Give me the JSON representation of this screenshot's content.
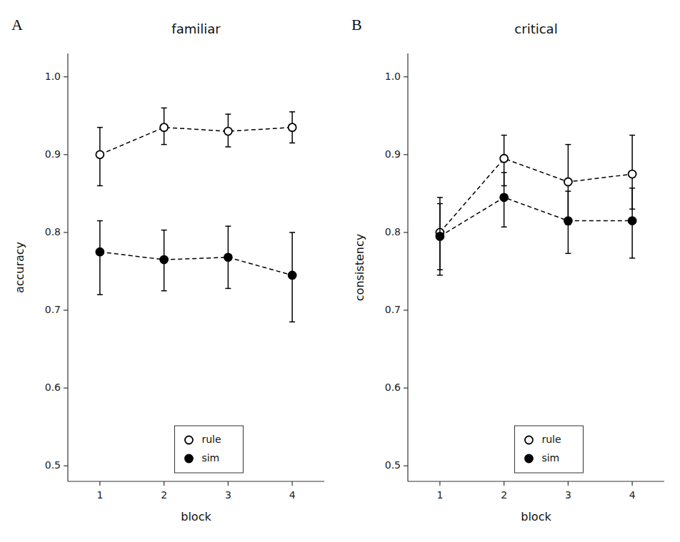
{
  "chart_data": [
    {
      "type": "line",
      "title": "familiar",
      "x_label": "block",
      "y_label": "accuracy",
      "annotations": [
        "A"
      ],
      "x": [
        1,
        2,
        3,
        4
      ],
      "xlim": [
        0.5,
        4.5
      ],
      "xticks": [
        1,
        2,
        3,
        4
      ],
      "ylim": [
        0.48,
        1.03
      ],
      "yticks": [
        0.5,
        0.6,
        0.7,
        0.8,
        0.9,
        {
          "value": 1.0,
          "label": "1.0"
        }
      ],
      "grid": false,
      "legend": "bottom",
      "series": [
        {
          "name": "rule",
          "color": "#000000",
          "marker": "open-circle",
          "line_style": "dashed",
          "values": [
            0.9,
            0.935,
            0.93,
            0.935
          ],
          "error_lo": [
            0.04,
            0.022,
            0.02,
            0.02
          ],
          "error_hi": [
            0.035,
            0.025,
            0.022,
            0.02
          ]
        },
        {
          "name": "sim",
          "color": "#000000",
          "marker": "circle",
          "line_style": "dashed",
          "values": [
            0.775,
            0.765,
            0.768,
            0.745
          ],
          "error_lo": [
            0.055,
            0.04,
            0.04,
            0.06
          ],
          "error_hi": [
            0.04,
            0.038,
            0.04,
            0.055
          ]
        }
      ]
    },
    {
      "type": "line",
      "title": "critical",
      "x_label": "block",
      "y_label": "consistency",
      "annotations": [
        "B"
      ],
      "x": [
        1,
        2,
        3,
        4
      ],
      "xlim": [
        0.5,
        4.5
      ],
      "xticks": [
        1,
        2,
        3,
        4
      ],
      "ylim": [
        0.48,
        1.03
      ],
      "yticks": [
        0.5,
        0.6,
        0.7,
        0.8,
        0.9,
        {
          "value": 1.0,
          "label": "1.0"
        }
      ],
      "grid": false,
      "legend": "bottom",
      "series": [
        {
          "name": "rule",
          "color": "#000000",
          "marker": "open-circle",
          "line_style": "dashed",
          "values": [
            0.8,
            0.895,
            0.865,
            0.875
          ],
          "error_lo": [
            0.048,
            0.035,
            0.055,
            0.045
          ],
          "error_hi": [
            0.045,
            0.03,
            0.048,
            0.05
          ]
        },
        {
          "name": "sim",
          "color": "#000000",
          "marker": "circle",
          "line_style": "dashed",
          "values": [
            0.795,
            0.845,
            0.815,
            0.815
          ],
          "error_lo": [
            0.05,
            0.038,
            0.042,
            0.048
          ],
          "error_hi": [
            0.042,
            0.032,
            0.038,
            0.042
          ]
        }
      ]
    }
  ]
}
